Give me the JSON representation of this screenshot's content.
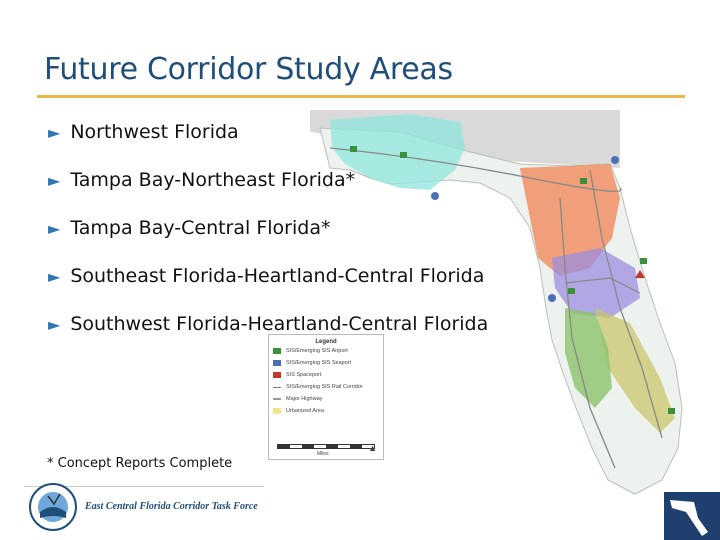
{
  "slide": {
    "title": "Future Corridor Study Areas",
    "bullets": [
      "Northwest Florida",
      "Tampa Bay-Northeast Florida*",
      "Tampa Bay-Central Florida*",
      "Southeast Florida-Heartland-Central Florida",
      "Southwest Florida-Heartland-Central Florida"
    ],
    "bullet_icon": "triangle-right-icon",
    "footnote": "* Concept Reports Complete",
    "org_name": "East Central Florida Corridor Task Force"
  },
  "legend": {
    "title": "Legend",
    "items": [
      {
        "label": "SIS/Emerging SIS Airport",
        "color": "#3a8f3a"
      },
      {
        "label": "SIS/Emerging SIS Seaport",
        "color": "#4a6fb5"
      },
      {
        "label": "SIS Spaceport",
        "color": "#c0392b"
      },
      {
        "label": "SIS/Emerging SIS Rail Corridor",
        "color": "#777777"
      },
      {
        "label": "Major Highway",
        "color": "#999999"
      },
      {
        "label": "Urbanized Area",
        "color": "#f2e38c"
      }
    ],
    "scale_label": "Miles"
  },
  "colors": {
    "title": "#1f4e79",
    "rule": "#e8b84a",
    "bullet_arrow": "#2e75b6",
    "northwest_zone": "#8ee6dc",
    "tampa_northeast_zone": "#f08a5d",
    "tampa_central_zone": "#9b8ee0",
    "southeast_zone": "#c9c66a",
    "southwest_zone": "#8cc36b"
  }
}
